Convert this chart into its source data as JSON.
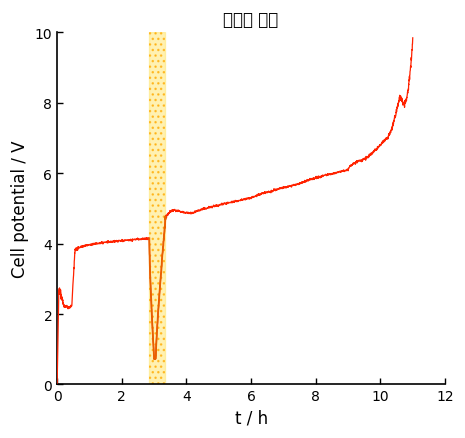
{
  "title": "전해질 교체",
  "xlabel": "t / h",
  "ylabel": "Cell potential / V",
  "xlim": [
    0,
    12
  ],
  "ylim": [
    0,
    10
  ],
  "xticks": [
    0,
    2,
    4,
    6,
    8,
    10,
    12
  ],
  "yticks": [
    0,
    2,
    4,
    6,
    8,
    10
  ],
  "line_color": "#ff2200",
  "orange_color": "#e86000",
  "shade_xmin": 2.85,
  "shade_xmax": 3.35,
  "shade_color": "#ffe566",
  "shade_alpha": 0.55,
  "title_fontsize": 12,
  "label_fontsize": 12,
  "background_color": "#ffffff"
}
